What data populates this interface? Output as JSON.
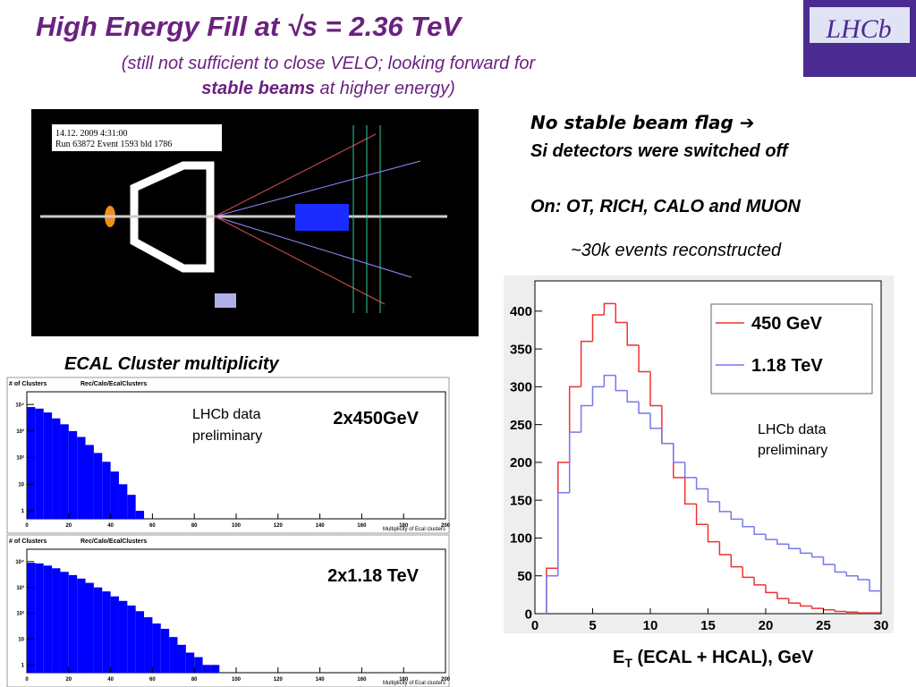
{
  "header": {
    "title": "High Energy Fill at √s = 2.36 TeV",
    "subtitle_line1": "(still not sufficient to close VELO; looking forward for",
    "subtitle_bold": "stable beams",
    "subtitle_rest": " at higher energy)"
  },
  "logo": "LHCb",
  "event_display": {
    "info_line1": "14.12. 2009  4:31:00",
    "info_line2": "Run 63872 Event 1593   bld 1786"
  },
  "notes": [
    "No stable beam flag ➔",
    "Si detectors were switched off",
    "On:  OT, RICH, CALO and MUON",
    "~30k events reconstructed"
  ],
  "ecal": {
    "title": "ECAL Cluster multiplicity",
    "charts": [
      {
        "type": "histogram",
        "header": "# of Clusters",
        "header_path": "Rec/Calo/EcalClusters",
        "xlabel": "Multiplicity of Ecal clusters",
        "label": "2x450GeV",
        "annotation": [
          "LHCb data",
          "preliminary"
        ],
        "log_y": true,
        "color": "#0000ff",
        "bins": [
          0,
          4,
          8,
          12,
          16,
          20,
          24,
          28,
          32,
          36,
          40,
          44,
          48,
          52,
          56
        ],
        "values": [
          8000,
          7000,
          5000,
          3000,
          1800,
          1000,
          600,
          300,
          150,
          70,
          30,
          10,
          4,
          1
        ],
        "xlim": [
          0,
          200
        ],
        "xticks": [
          0,
          20,
          40,
          60,
          80,
          100,
          120,
          140,
          160,
          180,
          200
        ],
        "ylim": [
          0.5,
          30000
        ],
        "yticks": [
          1,
          10,
          {
            "value": 100,
            "label": "10²"
          },
          {
            "value": 1000,
            "label": "10³"
          },
          {
            "value": 10000,
            "label": "10⁴"
          }
        ]
      },
      {
        "type": "histogram",
        "header": "# of Clusters",
        "header_path": "Rec/Calo/EcalClusters",
        "xlabel": "Multiplicity of Ecal clusters",
        "label": "2x1.18 TeV",
        "log_y": true,
        "color": "#0000ff",
        "bins": [
          0,
          4,
          8,
          12,
          16,
          20,
          24,
          28,
          32,
          36,
          40,
          44,
          48,
          52,
          56,
          60,
          64,
          68,
          72,
          76,
          80,
          84,
          88,
          92
        ],
        "values": [
          9000,
          8500,
          7000,
          5500,
          4000,
          3000,
          2200,
          1500,
          1000,
          700,
          450,
          300,
          200,
          120,
          70,
          40,
          25,
          12,
          6,
          3,
          2,
          1,
          1
        ],
        "xlim": [
          0,
          200
        ],
        "xticks": [
          0,
          20,
          40,
          60,
          80,
          100,
          120,
          140,
          160,
          180,
          200
        ],
        "ylim": [
          0.5,
          30000
        ],
        "yticks": [
          1,
          10,
          {
            "value": 100,
            "label": "10²"
          },
          {
            "value": 1000,
            "label": "10³"
          },
          {
            "value": 10000,
            "label": "10⁴"
          }
        ]
      }
    ]
  },
  "et": {
    "chart": {
      "type": "step_histogram",
      "bins": [
        1,
        2,
        3,
        4,
        5,
        6,
        7,
        8,
        9,
        10,
        11,
        12,
        13,
        14,
        15,
        16,
        17,
        18,
        19,
        20,
        21,
        22,
        23,
        24,
        25,
        26,
        27,
        28,
        29,
        30
      ],
      "series": [
        {
          "name": "450 GeV",
          "color": "#ee3333",
          "values": [
            60,
            200,
            300,
            360,
            395,
            410,
            385,
            355,
            320,
            275,
            225,
            180,
            145,
            118,
            95,
            78,
            62,
            48,
            38,
            28,
            20,
            14,
            10,
            7,
            5,
            3,
            2,
            1,
            1
          ]
        },
        {
          "name": "1.18 TeV",
          "color": "#7777ee",
          "values": [
            50,
            160,
            240,
            275,
            300,
            315,
            295,
            280,
            265,
            245,
            225,
            200,
            180,
            165,
            148,
            135,
            125,
            115,
            105,
            98,
            92,
            86,
            80,
            75,
            65,
            55,
            50,
            45,
            30
          ]
        }
      ],
      "xlim": [
        0,
        30
      ],
      "xticks": [
        0,
        5,
        10,
        15,
        20,
        25,
        30
      ],
      "ylim": [
        0,
        440
      ],
      "yticks": [
        0,
        50,
        100,
        150,
        200,
        250,
        300,
        350,
        400
      ],
      "annotation": [
        "LHCb data",
        "preliminary"
      ]
    },
    "xlabel": {
      "main": "E",
      "sub": "T",
      "rest": " (ECAL + HCAL), GeV"
    }
  }
}
